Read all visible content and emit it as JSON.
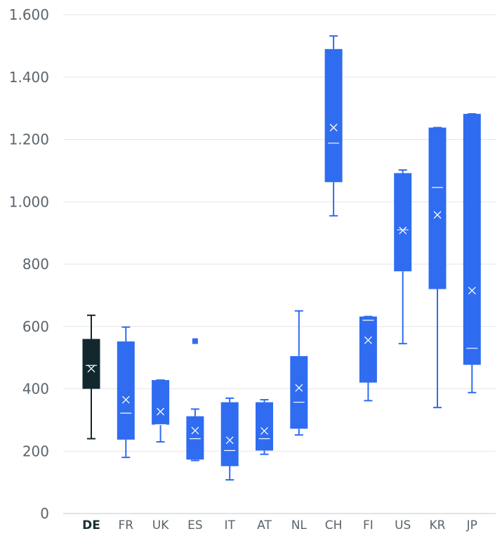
{
  "chart_data": {
    "type": "boxplot",
    "title": "",
    "xlabel": "",
    "ylabel": "",
    "ylim": [
      0,
      1600
    ],
    "yticks": [
      0,
      200,
      400,
      600,
      800,
      1000,
      1200,
      1400,
      1600
    ],
    "ytick_labels": [
      "0",
      "200",
      "400",
      "600",
      "800",
      "1.000",
      "1.200",
      "1.400",
      "1.600"
    ],
    "grid": true,
    "categories": [
      "DE",
      "FR",
      "UK",
      "ES",
      "IT",
      "AT",
      "NL",
      "CH",
      "FI",
      "US",
      "KR",
      "JP"
    ],
    "highlight_category": "DE",
    "colors": {
      "highlight": "#12282e",
      "default": "#2f6cf0",
      "marker": "#ffffff"
    },
    "boxes": [
      {
        "category": "DE",
        "whisker_low": 240,
        "q1": 400,
        "median": 475,
        "q3": 560,
        "whisker_high": 636,
        "mean": 465,
        "outliers": []
      },
      {
        "category": "FR",
        "whisker_low": 180,
        "q1": 237,
        "median": 322,
        "q3": 552,
        "whisker_high": 598,
        "mean": 365,
        "outliers": []
      },
      {
        "category": "UK",
        "whisker_low": 230,
        "q1": 285,
        "median": 285,
        "q3": 428,
        "whisker_high": 428,
        "mean": 327,
        "outliers": []
      },
      {
        "category": "ES",
        "whisker_low": 170,
        "q1": 173,
        "median": 240,
        "q3": 312,
        "whisker_high": 335,
        "mean": 266,
        "outliers": [
          553
        ]
      },
      {
        "category": "IT",
        "whisker_low": 108,
        "q1": 152,
        "median": 202,
        "q3": 357,
        "whisker_high": 370,
        "mean": 235,
        "outliers": []
      },
      {
        "category": "AT",
        "whisker_low": 190,
        "q1": 202,
        "median": 240,
        "q3": 357,
        "whisker_high": 365,
        "mean": 265,
        "outliers": []
      },
      {
        "category": "NL",
        "whisker_low": 252,
        "q1": 272,
        "median": 357,
        "q3": 505,
        "whisker_high": 650,
        "mean": 403,
        "outliers": []
      },
      {
        "category": "CH",
        "whisker_low": 955,
        "q1": 1063,
        "median": 1188,
        "q3": 1490,
        "whisker_high": 1532,
        "mean": 1238,
        "outliers": []
      },
      {
        "category": "FI",
        "whisker_low": 362,
        "q1": 420,
        "median": 620,
        "q3": 632,
        "whisker_high": 632,
        "mean": 556,
        "outliers": []
      },
      {
        "category": "US",
        "whisker_low": 545,
        "q1": 777,
        "median": 910,
        "q3": 1092,
        "whisker_high": 1102,
        "mean": 908,
        "outliers": []
      },
      {
        "category": "KR",
        "whisker_low": 340,
        "q1": 720,
        "median": 1046,
        "q3": 1238,
        "whisker_high": 1238,
        "mean": 958,
        "outliers": []
      },
      {
        "category": "JP",
        "whisker_low": 388,
        "q1": 477,
        "median": 530,
        "q3": 1282,
        "whisker_high": 1282,
        "mean": 715,
        "outliers": []
      }
    ]
  }
}
